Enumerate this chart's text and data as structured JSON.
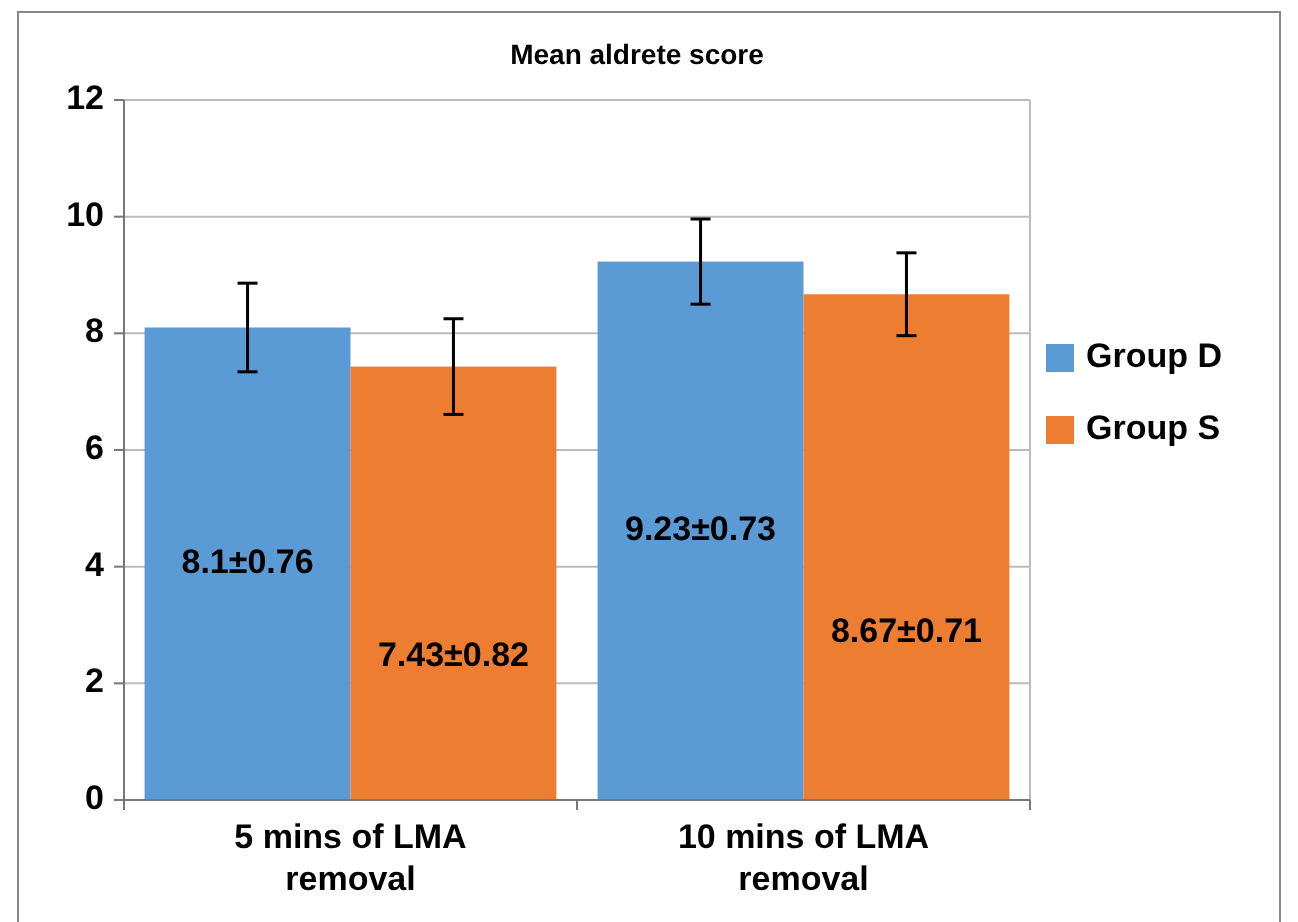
{
  "chart_data": {
    "type": "bar",
    "title": "Mean aldrete score",
    "categories": [
      "5 mins of LMA removal",
      "10 mins of LMA removal"
    ],
    "series": [
      {
        "name": "Group D",
        "color": "#5b9bd5",
        "values": [
          8.1,
          9.23
        ],
        "errors": [
          0.76,
          0.73
        ],
        "value_labels": [
          "8.1±0.76",
          "9.23±0.73"
        ]
      },
      {
        "name": "Group S",
        "color": "#ed7d31",
        "values": [
          7.43,
          8.67
        ],
        "errors": [
          0.82,
          0.71
        ],
        "value_labels": [
          "7.43±0.82",
          "8.67±0.71"
        ]
      }
    ],
    "ylim": [
      0,
      12
    ],
    "yticks": [
      0,
      2,
      4,
      6,
      8,
      10,
      12
    ],
    "grid": "y",
    "legend": "right"
  }
}
